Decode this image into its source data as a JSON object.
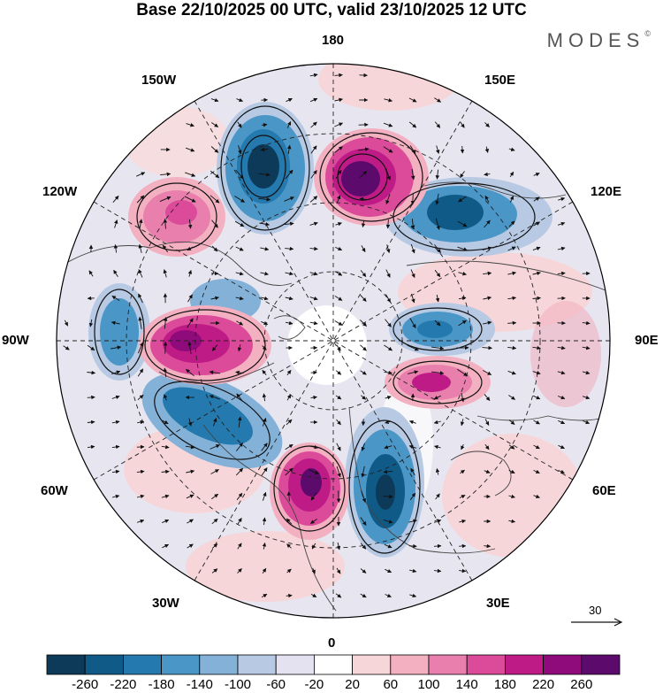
{
  "title": "Base 22/10/2025 00 UTC, valid 23/10/2025 12 UTC",
  "brand": "MODES",
  "brand_mark": "©",
  "longitude_labels": {
    "top": "180",
    "bottom": "0",
    "left": "90W",
    "right": "90E",
    "upper_left_1": "150W",
    "upper_left_2": "120W",
    "upper_right_1": "150E",
    "upper_right_2": "120E",
    "lower_left_1": "60W",
    "lower_left_2": "30W",
    "lower_right_1": "60E",
    "lower_right_2": "30E"
  },
  "vector_scale": {
    "value": "30"
  },
  "colorbar": {
    "ticks": [
      "-260",
      "-220",
      "-180",
      "-140",
      "-100",
      "-60",
      "-20",
      "20",
      "60",
      "100",
      "140",
      "180",
      "220",
      "260"
    ],
    "colors": [
      "#0d3a59",
      "#0f5a86",
      "#2479ae",
      "#4a96c6",
      "#83b1d8",
      "#b7c9e3",
      "#e4e2f1",
      "#ffffff",
      "#f7d6d9",
      "#f2b0c0",
      "#e97fad",
      "#db4b9a",
      "#bf1b87",
      "#8f0b7b",
      "#5c0a6c"
    ]
  },
  "map_colors": {
    "ocean_bg": "#eeeeee",
    "coast": "#444444",
    "grid": "#222222"
  }
}
